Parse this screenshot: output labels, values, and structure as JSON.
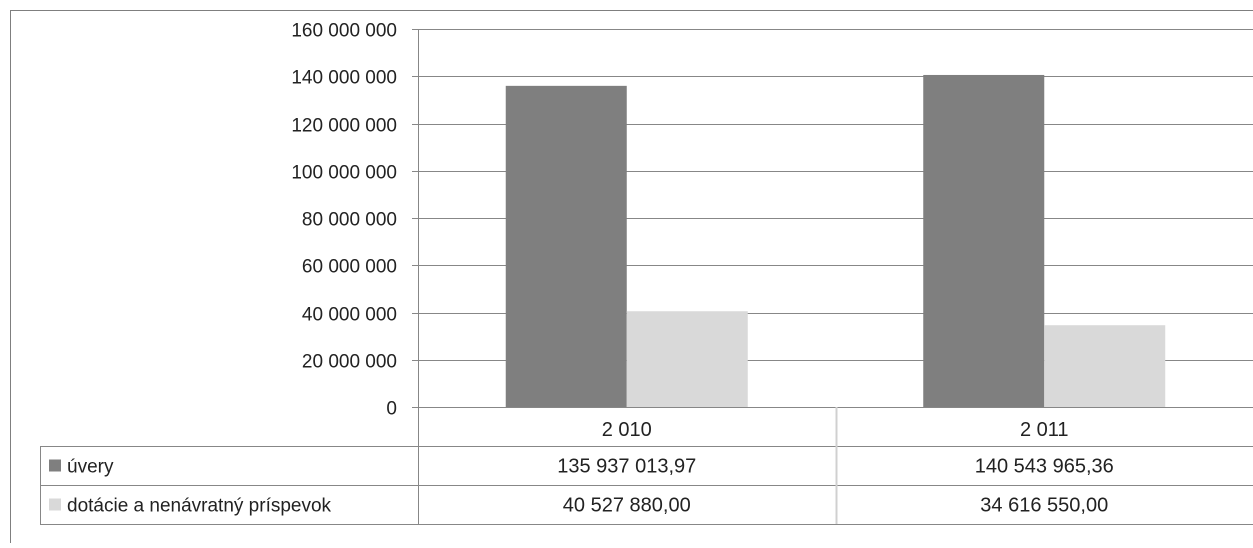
{
  "chart_data": {
    "type": "bar",
    "categories": [
      "2 010",
      "2 011"
    ],
    "series": [
      {
        "name": "úvery",
        "color": "#7f7f7f",
        "values": [
          135937013.97,
          140543965.36
        ],
        "labels": [
          "135 937 013,97",
          "140 543 965,36"
        ]
      },
      {
        "name": "dotácie a nenávratný príspevok",
        "color": "#d9d9d9",
        "values": [
          40527880.0,
          34616550.0
        ],
        "labels": [
          "40 527 880,00",
          "34 616 550,00"
        ]
      }
    ],
    "ylim": [
      0,
      160000000
    ],
    "yticks": [
      0,
      20000000,
      40000000,
      60000000,
      80000000,
      100000000,
      120000000,
      140000000,
      160000000
    ],
    "ytick_labels": [
      "0",
      "20 000 000",
      "40 000 000",
      "60 000 000",
      "80 000 000",
      "100 000 000",
      "120 000 000",
      "140 000 000",
      "160 000 000"
    ],
    "grid": true,
    "legend": "data-table"
  }
}
